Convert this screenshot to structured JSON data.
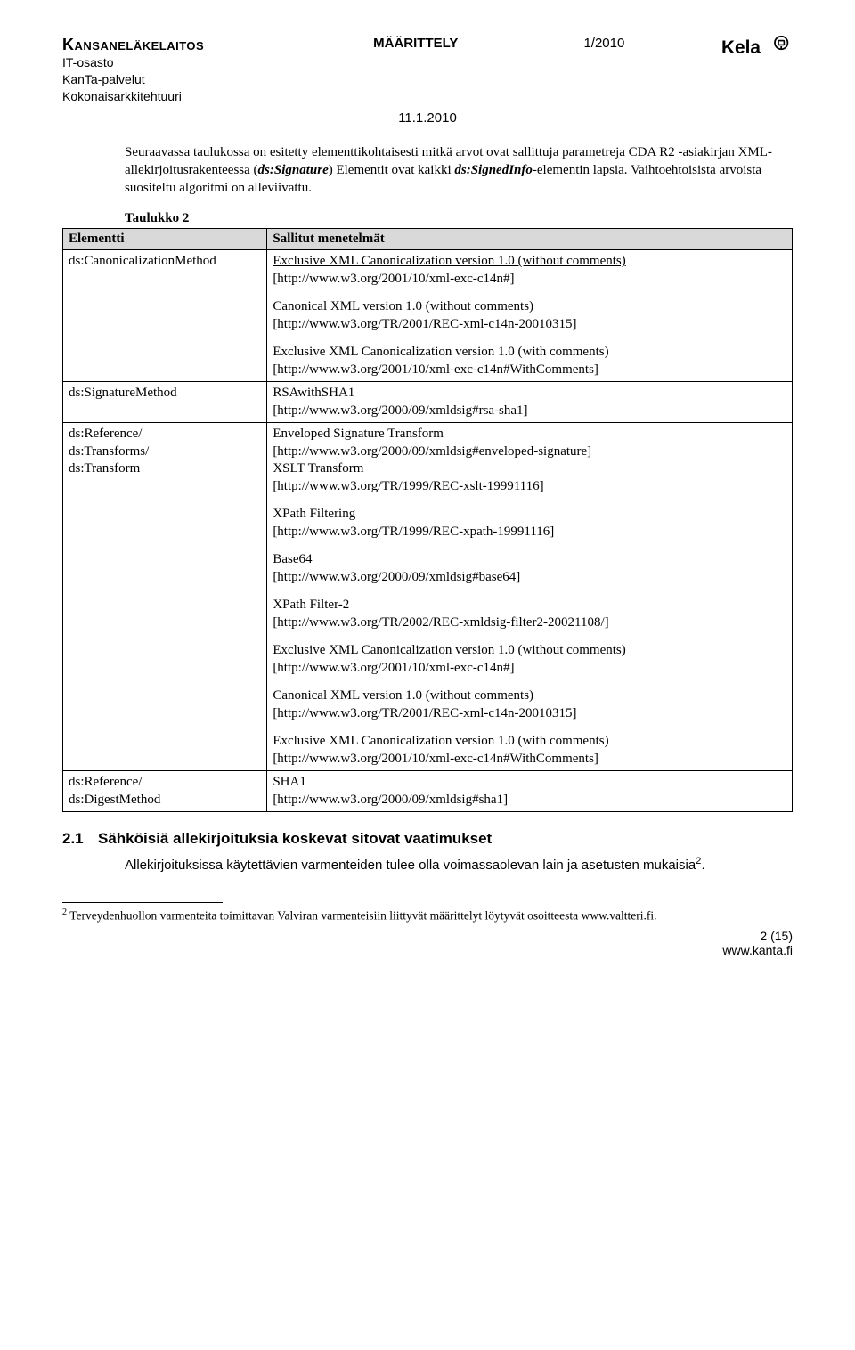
{
  "header": {
    "org_name": "Kansaneläkelaitos",
    "dept": "IT-osasto",
    "service": "KanTa-palvelut",
    "arch": "Kokonaisarkkitehtuuri",
    "spec_label": "MÄÄRITTELY",
    "doc_num": "1/2010",
    "date": "11.1.2010",
    "logo_text": "Kela"
  },
  "intro": {
    "prefix": "Seuraavassa taulukossa on esitetty elementtikohtaisesti mitkä arvot ovat sallittuja parametreja CDA R2 -asiakirjan XML-allekirjoitusrakenteessa (",
    "sig_elem": "ds:Signature",
    "mid1": ") Elementit ovat kaikki ",
    "signed_info": "ds:SignedInfo",
    "mid2": "-elementin lapsia. Vaihtoehtoisista arvoista suositeltu algoritmi on alleviivattu."
  },
  "table": {
    "caption": "Taulukko 2",
    "head_element": "Elementti",
    "head_methods": "Sallitut menetelmät",
    "rows": [
      {
        "element_lines": [
          "ds:CanonicalizationMethod"
        ],
        "methods": [
          {
            "title": "Exclusive XML Canonicalization version 1.0 (without comments)",
            "underline": true,
            "url": "[http://www.w3.org/2001/10/xml-exc-c14n#]"
          },
          {
            "title": "Canonical XML version 1.0 (without comments)",
            "underline": false,
            "url": "[http://www.w3.org/TR/2001/REC-xml-c14n-20010315]"
          },
          {
            "title": "Exclusive XML Canonicalization version 1.0 (with comments)",
            "underline": false,
            "url": "[http://www.w3.org/2001/10/xml-exc-c14n#WithComments]"
          }
        ]
      },
      {
        "element_lines": [
          "ds:SignatureMethod"
        ],
        "methods": [
          {
            "title": "RSAwithSHA1",
            "underline": false,
            "url": "[http://www.w3.org/2000/09/xmldsig#rsa-sha1]"
          }
        ]
      },
      {
        "element_lines": [
          "ds:Reference/",
          "ds:Transforms/",
          "ds:Transform"
        ],
        "methods": [
          {
            "title": "Enveloped Signature Transform",
            "underline": false,
            "url": "[http://www.w3.org/2000/09/xmldsig#enveloped-signature]",
            "extra_title": "XSLT Transform",
            "extra_url": "[http://www.w3.org/TR/1999/REC-xslt-19991116]"
          },
          {
            "title": "XPath Filtering",
            "underline": false,
            "url": "[http://www.w3.org/TR/1999/REC-xpath-19991116]"
          },
          {
            "title": "Base64",
            "underline": false,
            "url": "[http://www.w3.org/2000/09/xmldsig#base64]"
          },
          {
            "title": "XPath Filter-2",
            "underline": false,
            "url": "[http://www.w3.org/TR/2002/REC-xmldsig-filter2-20021108/]"
          },
          {
            "title": "Exclusive XML Canonicalization version 1.0 (without comments)",
            "underline": true,
            "url": "[http://www.w3.org/2001/10/xml-exc-c14n#]"
          },
          {
            "title": "Canonical XML version 1.0 (without comments)",
            "underline": false,
            "url": "[http://www.w3.org/TR/2001/REC-xml-c14n-20010315]"
          },
          {
            "title": "Exclusive XML Canonicalization version 1.0 (with comments)",
            "underline": false,
            "url": "[http://www.w3.org/2001/10/xml-exc-c14n#WithComments]"
          }
        ]
      },
      {
        "element_lines": [
          "ds:Reference/",
          "ds:DigestMethod"
        ],
        "methods": [
          {
            "title": "SHA1",
            "underline": false,
            "url": "[http://www.w3.org/2000/09/xmldsig#sha1]"
          }
        ]
      }
    ]
  },
  "section": {
    "number": "2.1",
    "title": "Sähköisiä allekirjoituksia koskevat sitovat vaatimukset",
    "body_prefix": "Allekirjoituksissa käytettävien varmenteiden tulee olla voimassaolevan lain ja asetusten mukaisia",
    "fn_mark": "2",
    "body_suffix": "."
  },
  "footnote": {
    "mark": "2",
    "text": " Terveydenhuollon varmenteita toimittavan Valviran varmenteisiin liittyvät määrittelyt löytyvät osoitteesta www.valtteri.fi."
  },
  "footer": {
    "page": "2 (15)",
    "site": "www.kanta.fi"
  }
}
